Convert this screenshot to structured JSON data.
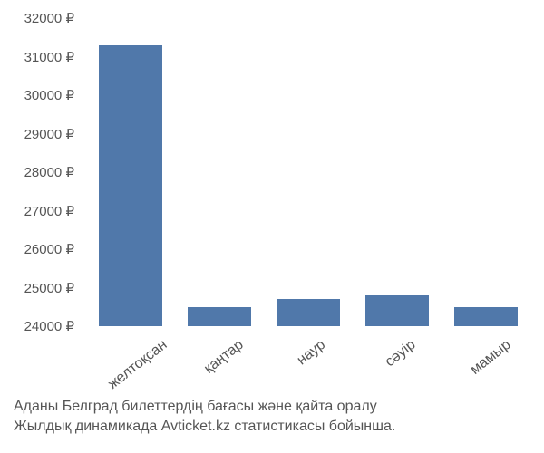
{
  "chart": {
    "type": "bar",
    "categories": [
      "желтоқсан",
      "қаңтар",
      "наур",
      "сәуір",
      "мамыр"
    ],
    "values": [
      31300,
      24500,
      24700,
      24800,
      24500
    ],
    "bar_color": "#5078aa",
    "background_color": "#ffffff",
    "y_axis": {
      "min": 24000,
      "max": 32000,
      "tick_step": 1000,
      "ticks": [
        24000,
        25000,
        26000,
        27000,
        28000,
        29000,
        30000,
        31000,
        32000
      ],
      "tick_labels": [
        "24000 ₽",
        "25000 ₽",
        "26000 ₽",
        "27000 ₽",
        "28000 ₽",
        "29000 ₽",
        "30000 ₽",
        "31000 ₽",
        "32000 ₽"
      ],
      "currency_symbol": "₽"
    },
    "label_fontsize": 15,
    "label_color": "#555555",
    "x_label_rotation": -38,
    "bar_width_ratio": 0.72
  },
  "caption": {
    "line1": "Аданы Белград билеттердің бағасы және қайта оралу",
    "line2": "Жылдық динамикада Avticket.kz статистикасы бойынша.",
    "fontsize": 16,
    "color": "#555555"
  }
}
